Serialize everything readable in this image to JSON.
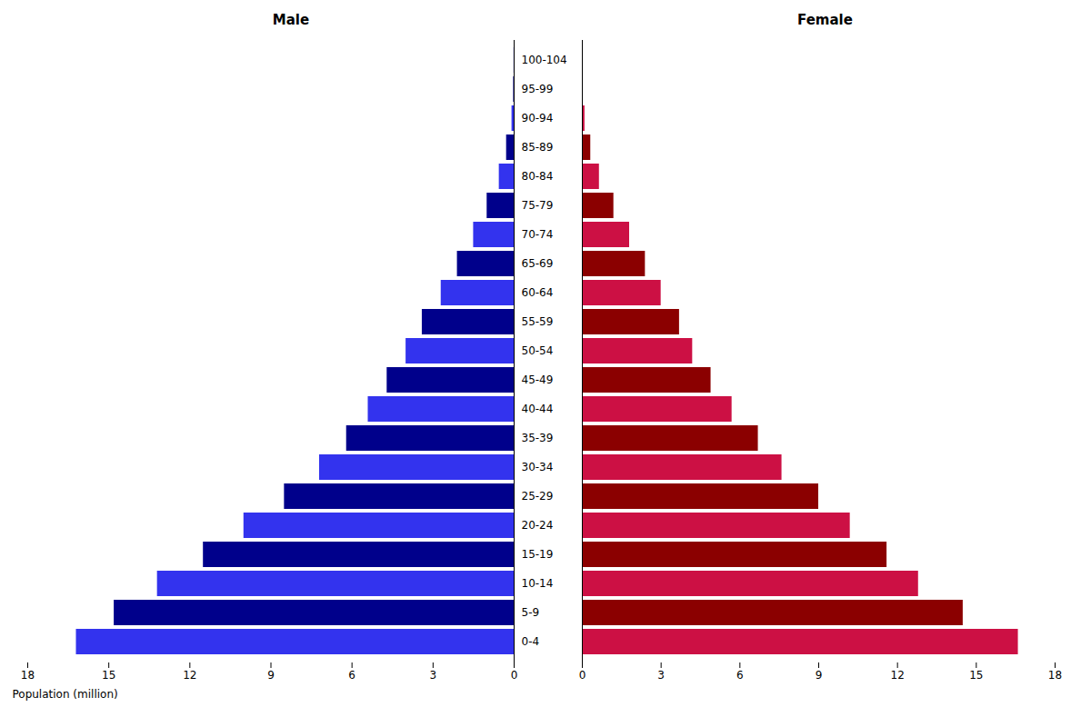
{
  "chart_data": {
    "type": "bar",
    "orientation": "horizontal",
    "xlabel": "Population (million)",
    "categories": [
      "0-4",
      "5-9",
      "10-14",
      "15-19",
      "20-24",
      "25-29",
      "30-34",
      "35-39",
      "40-44",
      "45-49",
      "50-54",
      "55-59",
      "60-64",
      "65-69",
      "70-74",
      "75-79",
      "80-84",
      "85-89",
      "90-94",
      "95-99",
      "100-104"
    ],
    "series": [
      {
        "name": "Male",
        "values": [
          16.2,
          14.8,
          13.2,
          11.5,
          10.0,
          8.5,
          7.2,
          6.2,
          5.4,
          4.7,
          4.0,
          3.4,
          2.7,
          2.1,
          1.5,
          1.0,
          0.55,
          0.28,
          0.08,
          0.02,
          0.005
        ],
        "colors": [
          "#3333EE",
          "#00008B",
          "#3333EE",
          "#00008B",
          "#3333EE",
          "#00008B",
          "#3333EE",
          "#00008B",
          "#3333EE",
          "#00008B",
          "#3333EE",
          "#00008B",
          "#3333EE",
          "#00008B",
          "#3333EE",
          "#00008B",
          "#3333EE",
          "#00008B",
          "#3333EE",
          "#00008B",
          "#3333EE"
        ]
      },
      {
        "name": "Female",
        "values": [
          16.6,
          14.5,
          12.8,
          11.6,
          10.2,
          9.0,
          7.6,
          6.7,
          5.7,
          4.9,
          4.2,
          3.7,
          3.0,
          2.4,
          1.8,
          1.2,
          0.65,
          0.32,
          0.1,
          0.03,
          0.008
        ],
        "colors": [
          "#CC1044",
          "#8B0000",
          "#CC1044",
          "#8B0000",
          "#CC1044",
          "#8B0000",
          "#CC1044",
          "#8B0000",
          "#CC1044",
          "#8B0000",
          "#CC1044",
          "#8B0000",
          "#CC1044",
          "#8B0000",
          "#CC1044",
          "#8B0000",
          "#CC1044",
          "#8B0000",
          "#CC1044",
          "#8B0000",
          "#CC1044"
        ]
      }
    ],
    "xlim": [
      0,
      18
    ],
    "xticks": [
      0,
      3,
      6,
      9,
      12,
      15,
      18
    ],
    "grid": false
  }
}
